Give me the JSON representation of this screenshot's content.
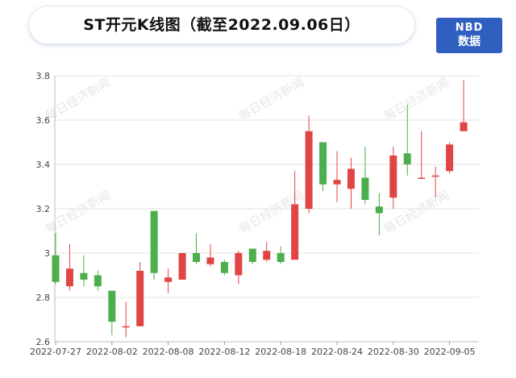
{
  "title": "ST开元K线图（截至2022.09.06日）",
  "logo": {
    "line1": "NBD",
    "line2": "数据"
  },
  "watermark": "每日经济新闻",
  "colors": {
    "up": "#e04444",
    "down": "#4cae4c",
    "grid": "#e3e3e3"
  },
  "chart_data": {
    "type": "candlestick",
    "title": "ST开元K线图（截至2022.09.06日）",
    "ylim": [
      2.6,
      3.8
    ],
    "yticks": [
      2.6,
      2.8,
      3,
      3.2,
      3.4,
      3.6,
      3.8
    ],
    "xtick_labels": [
      "2022-07-27",
      "2022-08-02",
      "2022-08-08",
      "2022-08-12",
      "2022-08-18",
      "2022-08-24",
      "2022-08-30",
      "2022-09-05"
    ],
    "xtick_indices": [
      0,
      4,
      8,
      12,
      16,
      20,
      24,
      28
    ],
    "candles": [
      {
        "date": "2022-07-27",
        "open": 2.99,
        "close": 2.87,
        "high": 3.09,
        "low": 2.86
      },
      {
        "date": "2022-07-28",
        "open": 2.85,
        "close": 2.93,
        "high": 3.04,
        "low": 2.83
      },
      {
        "date": "2022-07-29",
        "open": 2.91,
        "close": 2.88,
        "high": 2.99,
        "low": 2.85
      },
      {
        "date": "2022-08-01",
        "open": 2.9,
        "close": 2.85,
        "high": 2.92,
        "low": 2.83
      },
      {
        "date": "2022-08-02",
        "open": 2.83,
        "close": 2.69,
        "high": 2.83,
        "low": 2.63
      },
      {
        "date": "2022-08-03",
        "open": 2.67,
        "close": 2.67,
        "high": 2.78,
        "low": 2.62
      },
      {
        "date": "2022-08-04",
        "open": 2.67,
        "close": 2.92,
        "high": 2.96,
        "low": 2.67
      },
      {
        "date": "2022-08-05",
        "open": 3.19,
        "close": 2.91,
        "high": 3.19,
        "low": 2.88
      },
      {
        "date": "2022-08-08",
        "open": 2.87,
        "close": 2.89,
        "high": 2.93,
        "low": 2.82
      },
      {
        "date": "2022-08-09",
        "open": 2.88,
        "close": 3.0,
        "high": 3.0,
        "low": 2.88
      },
      {
        "date": "2022-08-10",
        "open": 3.0,
        "close": 2.96,
        "high": 3.09,
        "low": 2.95
      },
      {
        "date": "2022-08-11",
        "open": 2.95,
        "close": 2.98,
        "high": 3.04,
        "low": 2.94
      },
      {
        "date": "2022-08-12",
        "open": 2.96,
        "close": 2.91,
        "high": 2.97,
        "low": 2.9
      },
      {
        "date": "2022-08-15",
        "open": 2.9,
        "close": 3.0,
        "high": 3.01,
        "low": 2.86
      },
      {
        "date": "2022-08-16",
        "open": 3.02,
        "close": 2.96,
        "high": 3.02,
        "low": 2.95
      },
      {
        "date": "2022-08-17",
        "open": 2.97,
        "close": 3.01,
        "high": 3.05,
        "low": 2.96
      },
      {
        "date": "2022-08-18",
        "open": 3.0,
        "close": 2.96,
        "high": 3.03,
        "low": 2.95
      },
      {
        "date": "2022-08-19",
        "open": 2.97,
        "close": 3.22,
        "high": 3.37,
        "low": 2.97
      },
      {
        "date": "2022-08-22",
        "open": 3.2,
        "close": 3.55,
        "high": 3.62,
        "low": 3.18
      },
      {
        "date": "2022-08-23",
        "open": 3.5,
        "close": 3.31,
        "high": 3.5,
        "low": 3.28
      },
      {
        "date": "2022-08-24",
        "open": 3.31,
        "close": 3.33,
        "high": 3.46,
        "low": 3.23
      },
      {
        "date": "2022-08-25",
        "open": 3.29,
        "close": 3.38,
        "high": 3.43,
        "low": 3.2
      },
      {
        "date": "2022-08-26",
        "open": 3.34,
        "close": 3.24,
        "high": 3.48,
        "low": 3.22
      },
      {
        "date": "2022-08-29",
        "open": 3.21,
        "close": 3.18,
        "high": 3.27,
        "low": 3.08
      },
      {
        "date": "2022-08-30",
        "open": 3.25,
        "close": 3.44,
        "high": 3.48,
        "low": 3.2
      },
      {
        "date": "2022-08-31",
        "open": 3.45,
        "close": 3.4,
        "high": 3.67,
        "low": 3.35
      },
      {
        "date": "2022-09-01",
        "open": 3.34,
        "close": 3.34,
        "high": 3.55,
        "low": 3.34
      },
      {
        "date": "2022-09-02",
        "open": 3.35,
        "close": 3.35,
        "high": 3.39,
        "low": 3.25
      },
      {
        "date": "2022-09-05",
        "open": 3.37,
        "close": 3.49,
        "high": 3.5,
        "low": 3.36
      },
      {
        "date": "2022-09-06",
        "open": 3.55,
        "close": 3.59,
        "high": 3.78,
        "low": 3.55
      }
    ]
  }
}
